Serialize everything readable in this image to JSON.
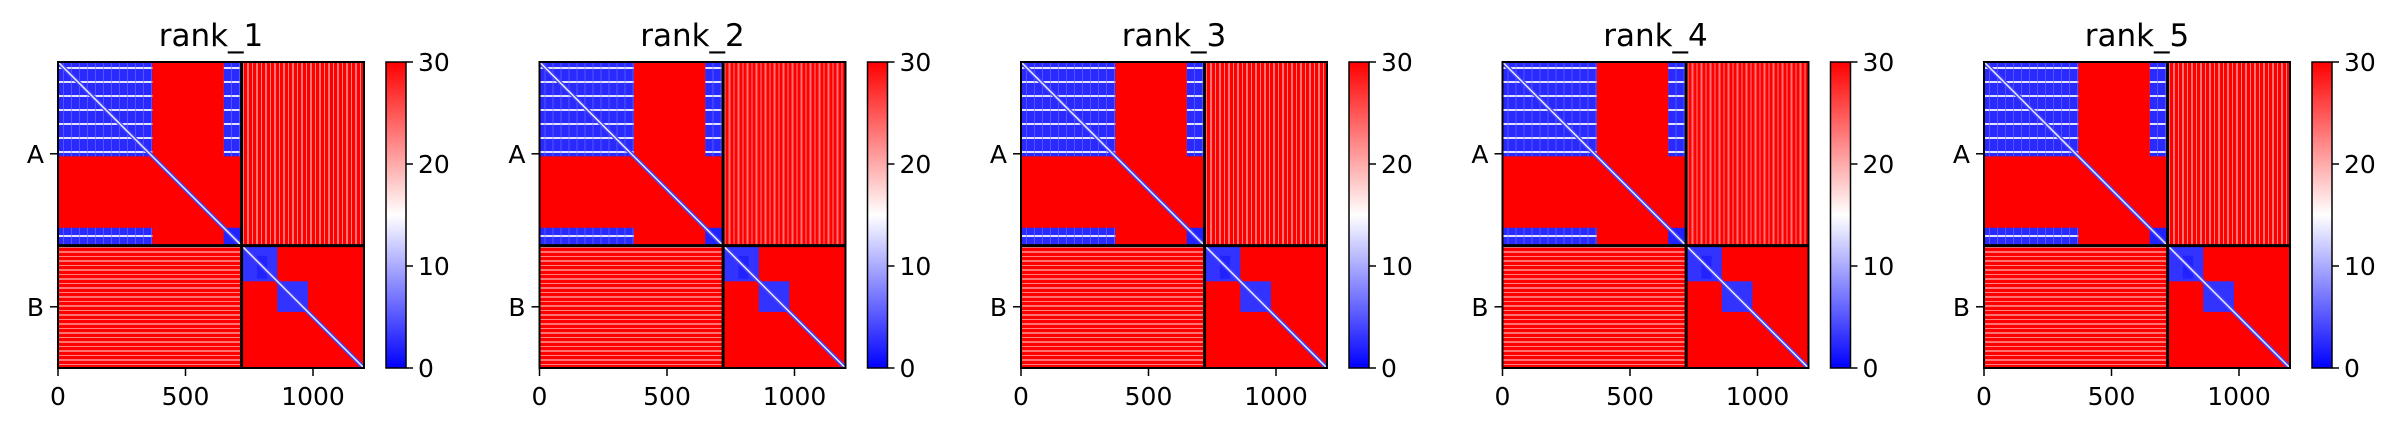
{
  "chart_data": {
    "type": "heatmap",
    "shared": {
      "colorscale": [
        "#0000ff",
        "#ffffff",
        "#ff0000"
      ],
      "colorbar": {
        "range": [
          0,
          30
        ],
        "ticks": [
          "0",
          "10",
          "20",
          "30"
        ]
      },
      "x_ticks": [
        "0",
        "500",
        "1000"
      ],
      "x_range": [
        0,
        1200
      ],
      "chain_labels": [
        "A",
        "B"
      ],
      "chain_boundary": 720,
      "blocks": [
        {
          "x": [
            0,
            370
          ],
          "y": [
            0,
            370
          ],
          "value": 2,
          "banded": true
        },
        {
          "x": [
            650,
            720
          ],
          "y": [
            0,
            370
          ],
          "value": 2,
          "banded": true
        },
        {
          "x": [
            0,
            370
          ],
          "y": [
            650,
            720
          ],
          "value": 2,
          "banded": true
        },
        {
          "x": [
            650,
            720
          ],
          "y": [
            650,
            720
          ],
          "value": 2,
          "banded": false
        },
        {
          "x": [
            720,
            860
          ],
          "y": [
            720,
            860
          ],
          "value": 3,
          "banded": false
        },
        {
          "x": [
            780,
            820
          ],
          "y": [
            760,
            850
          ],
          "value": 2,
          "banded": false
        },
        {
          "x": [
            860,
            980
          ],
          "y": [
            860,
            980
          ],
          "value": 3,
          "banded": false
        }
      ],
      "diagonal_band": 12
    },
    "panels": [
      {
        "title": "rank_1"
      },
      {
        "title": "rank_2"
      },
      {
        "title": "rank_3"
      },
      {
        "title": "rank_4"
      },
      {
        "title": "rank_5"
      }
    ]
  }
}
